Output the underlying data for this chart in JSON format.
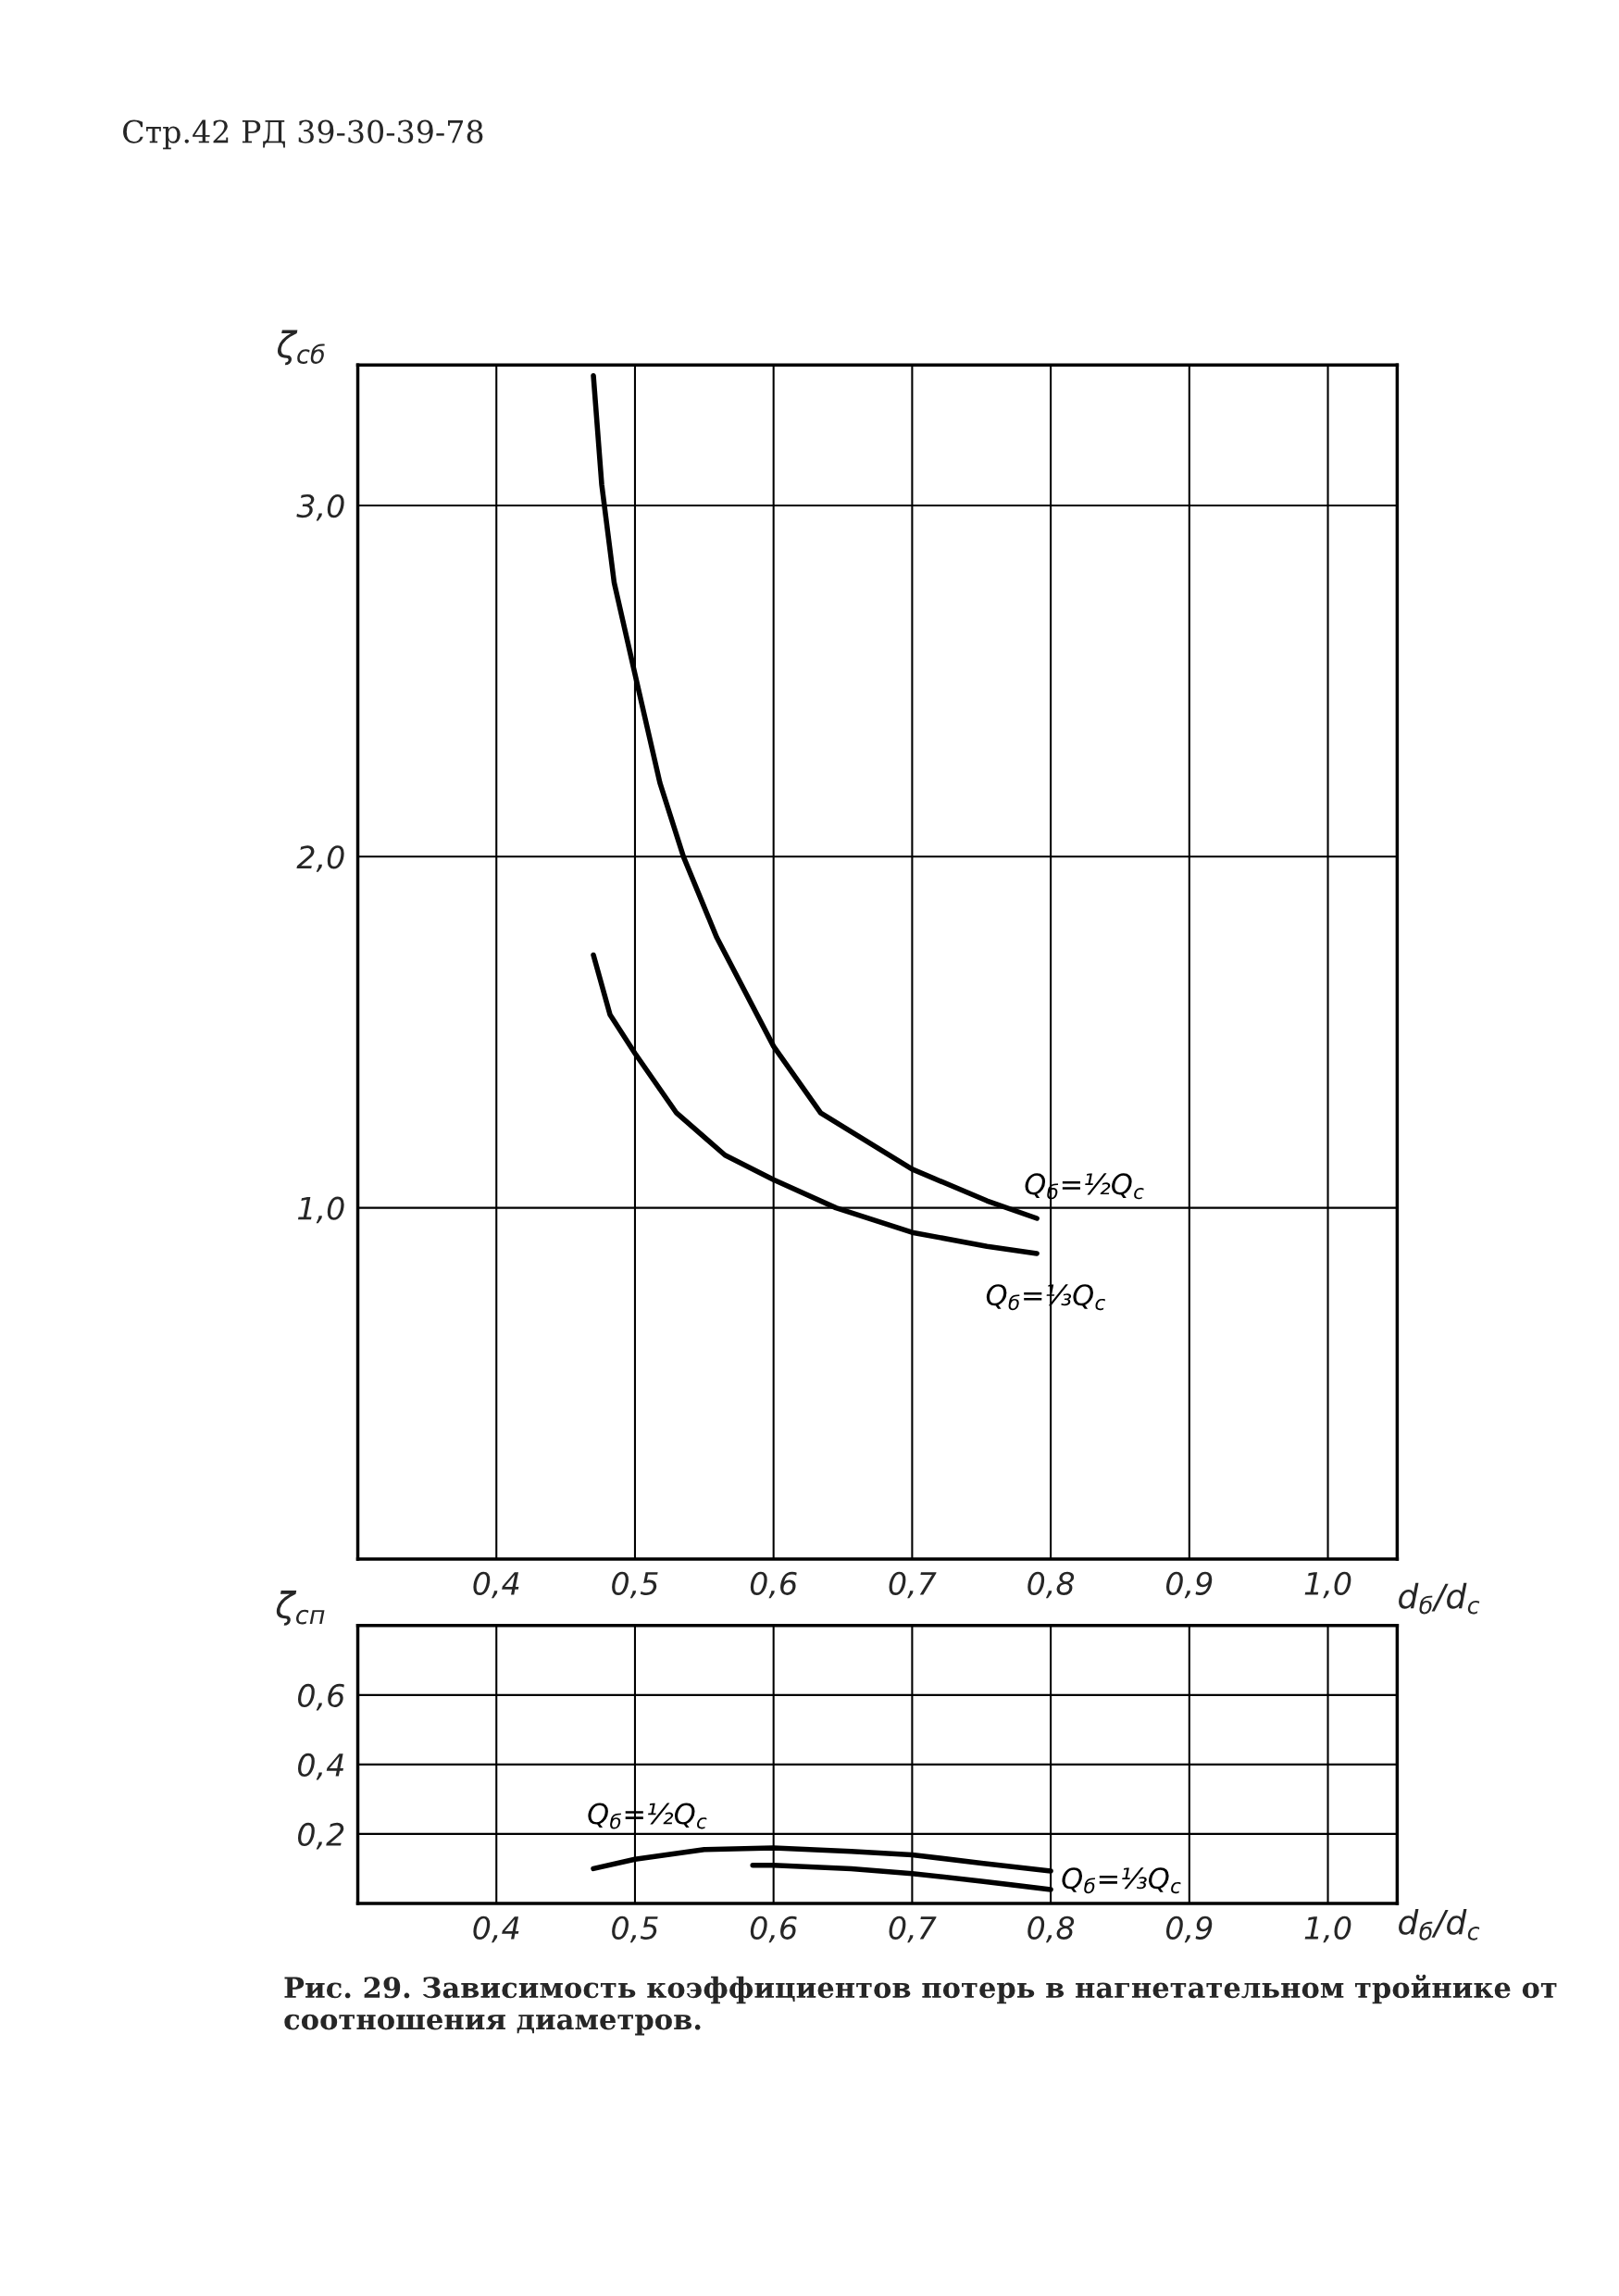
{
  "chart_data": [
    {
      "type": "line",
      "ylabel": "ζ$_{сб}$",
      "xlabel": "d$_{б}$/d$_{c}$",
      "annotations": [
        "Стр.42 РД 39-30-39-78"
      ],
      "xlim": [
        0.3,
        1.05
      ],
      "ylim": [
        0,
        3.4
      ],
      "xticks": [
        {
          "value": 0.4,
          "label": "0,4"
        },
        {
          "value": 0.5,
          "label": "0,5"
        },
        {
          "value": 0.6,
          "label": "0,6"
        },
        {
          "value": 0.7,
          "label": "0,7"
        },
        {
          "value": 0.8,
          "label": "0,8"
        },
        {
          "value": 0.9,
          "label": "0,9"
        },
        {
          "value": 1.0,
          "label": "1,0"
        }
      ],
      "yticks": [
        {
          "value": 1.0,
          "label": "1,0"
        },
        {
          "value": 2.0,
          "label": "2,0"
        },
        {
          "value": 3.0,
          "label": "3,0"
        }
      ],
      "grid": true,
      "legend": false,
      "marker": "none",
      "line_style": "solid",
      "series": [
        {
          "name": "Q$_{б}$=½Q$_{c}$",
          "color": "#000000",
          "x": [
            0.47,
            0.476,
            0.485,
            0.5,
            0.518,
            0.535,
            0.559,
            0.6,
            0.634,
            0.7,
            0.754,
            0.79
          ],
          "values": [
            3.37,
            3.06,
            2.78,
            2.52,
            2.21,
            2.0,
            1.77,
            1.46,
            1.27,
            1.11,
            1.02,
            0.97
          ]
        },
        {
          "name": "Q$_{б}$=⅓Q$_{c}$",
          "color": "#000000",
          "x": [
            0.47,
            0.482,
            0.5,
            0.53,
            0.565,
            0.6,
            0.645,
            0.7,
            0.754,
            0.79
          ],
          "values": [
            1.72,
            1.55,
            1.44,
            1.27,
            1.15,
            1.08,
            1.0,
            0.93,
            0.89,
            0.87
          ]
        }
      ]
    },
    {
      "type": "line",
      "ylabel": "ζ$_{сп}$",
      "xlabel": "d$_{б}$/d$_{c}$",
      "annotations": [
        "Рис. 29. Зависимость коэффициентов потерь в нагнетательном тройнике от соотношения диаметров."
      ],
      "xlim": [
        0.3,
        1.05
      ],
      "ylim": [
        0,
        0.8
      ],
      "xticks": [
        {
          "value": 0.4,
          "label": "0,4"
        },
        {
          "value": 0.5,
          "label": "0,5"
        },
        {
          "value": 0.6,
          "label": "0,6"
        },
        {
          "value": 0.7,
          "label": "0,7"
        },
        {
          "value": 0.8,
          "label": "0,8"
        },
        {
          "value": 0.9,
          "label": "0,9"
        },
        {
          "value": 1.0,
          "label": "1,0"
        }
      ],
      "yticks": [
        {
          "value": 0.2,
          "label": "0,2"
        },
        {
          "value": 0.4,
          "label": "0,4"
        },
        {
          "value": 0.6,
          "label": "0,6"
        }
      ],
      "grid": true,
      "legend": false,
      "marker": "none",
      "line_style": "solid",
      "series": [
        {
          "name": "Q$_{б}$=½Q$_{c}$",
          "color": "#000000",
          "x": [
            0.47,
            0.5,
            0.55,
            0.6,
            0.656,
            0.7,
            0.75,
            0.8
          ],
          "values": [
            0.1,
            0.127,
            0.155,
            0.16,
            0.15,
            0.14,
            0.116,
            0.093
          ]
        },
        {
          "name": "Q$_{б}$=⅓Q$_{c}$",
          "color": "#000000",
          "x": [
            0.585,
            0.6,
            0.656,
            0.7,
            0.75,
            0.8
          ],
          "values": [
            0.11,
            0.11,
            0.1,
            0.086,
            0.064,
            0.04
          ]
        }
      ]
    }
  ]
}
